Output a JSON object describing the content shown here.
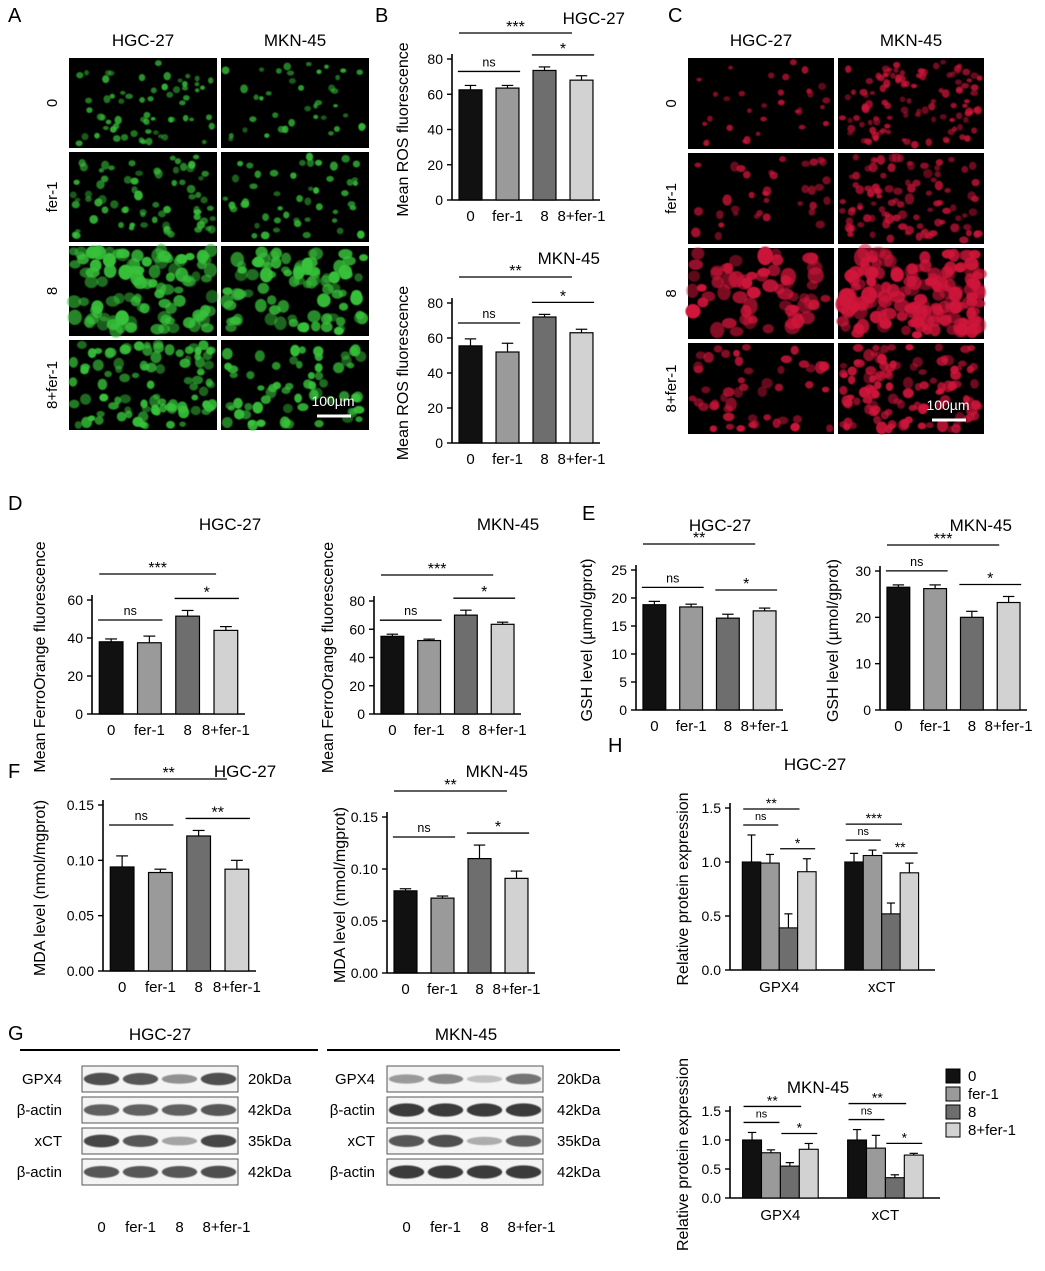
{
  "panel_letters": {
    "A": "A",
    "B": "B",
    "C": "C",
    "D": "D",
    "E": "E",
    "F": "F",
    "G": "G",
    "H": "H"
  },
  "cell_lines": [
    "HGC-27",
    "MKN-45"
  ],
  "conditions": [
    "0",
    "fer-1",
    "8",
    "8+fer-1"
  ],
  "scale_bar_label": "100µm",
  "colors": {
    "bar_fills": [
      "#111111",
      "#9a9a9a",
      "#6e6e6e",
      "#d2d2d2"
    ],
    "green_stain": "#39c23a",
    "red_stain": "#d0183a",
    "micro_background": "#000000"
  },
  "micrograph_A": {
    "stain": "green-fluorescence",
    "columns": [
      "HGC-27",
      "MKN-45"
    ],
    "rows": [
      "0",
      "fer-1",
      "8",
      "8+fer-1"
    ],
    "scale_bar": "100µm"
  },
  "micrograph_C": {
    "stain": "red-fluorescence",
    "columns": [
      "HGC-27",
      "MKN-45"
    ],
    "rows": [
      "0",
      "fer-1",
      "8",
      "8+fer-1"
    ],
    "scale_bar": "100µm"
  },
  "western_G": [
    {
      "title": "HGC-27",
      "rows": [
        {
          "label": "GPX4",
          "kda": "20kDa",
          "intensity": [
            0.8,
            0.75,
            0.45,
            0.8
          ]
        },
        {
          "label": "β-actin",
          "kda": "42kDa",
          "intensity": [
            0.7,
            0.7,
            0.7,
            0.75
          ]
        },
        {
          "label": "xCT",
          "kda": "35kDa",
          "intensity": [
            0.85,
            0.75,
            0.35,
            0.85
          ]
        },
        {
          "label": "β-actin",
          "kda": "42kDa",
          "intensity": [
            0.75,
            0.75,
            0.75,
            0.8
          ]
        }
      ],
      "lanes": [
        "0",
        "fer-1",
        "8",
        "8+fer-1"
      ]
    },
    {
      "title": "MKN-45",
      "rows": [
        {
          "label": "GPX4",
          "kda": "20kDa",
          "intensity": [
            0.4,
            0.5,
            0.2,
            0.6
          ]
        },
        {
          "label": "β-actin",
          "kda": "42kDa",
          "intensity": [
            0.9,
            0.9,
            0.9,
            0.9
          ]
        },
        {
          "label": "xCT",
          "kda": "35kDa",
          "intensity": [
            0.75,
            0.8,
            0.3,
            0.7
          ]
        },
        {
          "label": "β-actin",
          "kda": "42kDa",
          "intensity": [
            0.9,
            0.9,
            0.9,
            0.9
          ]
        }
      ],
      "lanes": [
        "0",
        "fer-1",
        "8",
        "8+fer-1"
      ]
    }
  ],
  "chart_data": [
    {
      "id": "B1",
      "type": "bar",
      "title": "HGC-27",
      "ylabel": "Mean ROS fluorescence",
      "categories": [
        "0",
        "fer-1",
        "8",
        "8+fer-1"
      ],
      "values": [
        62.5,
        63.5,
        73.5,
        68
      ],
      "errors": [
        2.5,
        1.5,
        2,
        2.5
      ],
      "ylim": [
        0,
        80
      ],
      "ticks": [
        0,
        20,
        40,
        60,
        80
      ],
      "sig": [
        {
          "from": 0,
          "to": 1,
          "label": "ns"
        },
        {
          "from": 2,
          "to": 3,
          "label": "*"
        },
        {
          "from": 0,
          "to": 2,
          "label": "***"
        }
      ]
    },
    {
      "id": "B2",
      "type": "bar",
      "title": "MKN-45",
      "ylabel": "Mean ROS fluorescence",
      "categories": [
        "0",
        "fer-1",
        "8",
        "8+fer-1"
      ],
      "values": [
        55.5,
        52,
        72,
        63
      ],
      "errors": [
        4,
        5,
        1.5,
        2
      ],
      "ylim": [
        0,
        80
      ],
      "ticks": [
        0,
        20,
        40,
        60,
        80
      ],
      "sig": [
        {
          "from": 0,
          "to": 1,
          "label": "ns"
        },
        {
          "from": 2,
          "to": 3,
          "label": "*"
        },
        {
          "from": 0,
          "to": 2,
          "label": "**"
        }
      ]
    },
    {
      "id": "D1",
      "type": "bar",
      "title": "HGC-27",
      "ylabel": "Mean FerroOrange fluorescence",
      "categories": [
        "0",
        "fer-1",
        "8",
        "8+fer-1"
      ],
      "values": [
        38,
        37.5,
        51.5,
        44
      ],
      "errors": [
        1.5,
        3.5,
        3,
        2
      ],
      "ylim": [
        0,
        60
      ],
      "ticks": [
        0,
        20,
        40,
        60
      ],
      "sig": [
        {
          "from": 0,
          "to": 1,
          "label": "ns"
        },
        {
          "from": 2,
          "to": 3,
          "label": "*"
        },
        {
          "from": 0,
          "to": 2,
          "label": "***"
        }
      ]
    },
    {
      "id": "D2",
      "type": "bar",
      "title": "MKN-45",
      "ylabel": "Mean FerroOrange fluorescence",
      "categories": [
        "0",
        "fer-1",
        "8",
        "8+fer-1"
      ],
      "values": [
        55,
        52,
        70,
        63.5
      ],
      "errors": [
        1.5,
        1,
        3.5,
        1.5
      ],
      "ylim": [
        0,
        80
      ],
      "ticks": [
        0,
        20,
        40,
        60,
        80
      ],
      "sig": [
        {
          "from": 0,
          "to": 1,
          "label": "ns"
        },
        {
          "from": 2,
          "to": 3,
          "label": "*"
        },
        {
          "from": 0,
          "to": 2,
          "label": "***"
        }
      ]
    },
    {
      "id": "E1",
      "type": "bar",
      "title": "HGC-27",
      "ylabel": "GSH level (µmol/gprot)",
      "categories": [
        "0",
        "fer-1",
        "8",
        "8+fer-1"
      ],
      "values": [
        18.8,
        18.4,
        16.4,
        17.7
      ],
      "errors": [
        0.6,
        0.5,
        0.7,
        0.5
      ],
      "ylim": [
        0,
        25
      ],
      "ticks": [
        0,
        5,
        10,
        15,
        20,
        25
      ],
      "sig": [
        {
          "from": 0,
          "to": 1,
          "label": "ns"
        },
        {
          "from": 2,
          "to": 3,
          "label": "*"
        },
        {
          "from": 0,
          "to": 2,
          "label": "**"
        }
      ]
    },
    {
      "id": "E2",
      "type": "bar",
      "title": "MKN-45",
      "ylabel": "GSH level (µmol/gprot)",
      "categories": [
        "0",
        "fer-1",
        "8",
        "8+fer-1"
      ],
      "values": [
        26.5,
        26.2,
        20,
        23.2
      ],
      "errors": [
        0.5,
        0.8,
        1.3,
        1.3
      ],
      "ylim": [
        0,
        30
      ],
      "ticks": [
        0,
        10,
        20,
        30
      ],
      "sig": [
        {
          "from": 0,
          "to": 1,
          "label": "ns"
        },
        {
          "from": 2,
          "to": 3,
          "label": "*"
        },
        {
          "from": 0,
          "to": 2,
          "label": "***"
        }
      ]
    },
    {
      "id": "F1",
      "type": "bar",
      "title": "HGC-27",
      "ylabel": "MDA level (nmol/mgprot)",
      "categories": [
        "0",
        "fer-1",
        "8",
        "8+fer-1"
      ],
      "values": [
        0.094,
        0.089,
        0.122,
        0.092
      ],
      "errors": [
        0.01,
        0.003,
        0.005,
        0.008
      ],
      "ylim": [
        0,
        0.15
      ],
      "ticks": [
        0,
        0.05,
        0.1,
        0.15
      ],
      "tick_labels": [
        "0.00",
        "0.05",
        "0.10",
        "0.15"
      ],
      "sig": [
        {
          "from": 0,
          "to": 1,
          "label": "ns"
        },
        {
          "from": 2,
          "to": 3,
          "label": "**"
        },
        {
          "from": 0,
          "to": 2,
          "label": "**"
        }
      ]
    },
    {
      "id": "F2",
      "type": "bar",
      "title": "MKN-45",
      "ylabel": "MDA level (nmol/mgprot)",
      "categories": [
        "0",
        "fer-1",
        "8",
        "8+fer-1"
      ],
      "values": [
        0.079,
        0.072,
        0.11,
        0.091
      ],
      "errors": [
        0.002,
        0.002,
        0.013,
        0.007
      ],
      "ylim": [
        0,
        0.15
      ],
      "ticks": [
        0,
        0.05,
        0.1,
        0.15
      ],
      "tick_labels": [
        "0.00",
        "0.05",
        "0.10",
        "0.15"
      ],
      "sig": [
        {
          "from": 0,
          "to": 1,
          "label": "ns"
        },
        {
          "from": 2,
          "to": 3,
          "label": "*"
        },
        {
          "from": 0,
          "to": 2,
          "label": "**"
        }
      ]
    },
    {
      "id": "H1",
      "type": "grouped-bar",
      "title": "HGC-27",
      "ylabel": "Relative protein expression",
      "groups": [
        "GPX4",
        "xCT"
      ],
      "series": [
        {
          "name": "0",
          "values": [
            1.0,
            1.0
          ],
          "errors": [
            0.25,
            0.08
          ]
        },
        {
          "name": "fer-1",
          "values": [
            0.99,
            1.06
          ],
          "errors": [
            0.08,
            0.05
          ]
        },
        {
          "name": "8",
          "values": [
            0.39,
            0.52
          ],
          "errors": [
            0.13,
            0.1
          ]
        },
        {
          "name": "8+fer-1",
          "values": [
            0.91,
            0.9
          ],
          "errors": [
            0.12,
            0.09
          ]
        }
      ],
      "ylim": [
        0,
        1.5
      ],
      "ticks": [
        0,
        0.5,
        1,
        1.5
      ],
      "tick_labels": [
        "0.0",
        "0.5",
        "1.0",
        "1.5"
      ],
      "sig": [
        {
          "group": 0,
          "from": 0,
          "to": 1,
          "label": "ns"
        },
        {
          "group": 0,
          "from": 2,
          "to": 3,
          "label": "*"
        },
        {
          "group": 0,
          "from": 0,
          "to": 2,
          "label": "**"
        },
        {
          "group": 1,
          "from": 0,
          "to": 1,
          "label": "ns"
        },
        {
          "group": 1,
          "from": 2,
          "to": 3,
          "label": "**"
        },
        {
          "group": 1,
          "from": 0,
          "to": 2,
          "label": "***"
        }
      ]
    },
    {
      "id": "H2",
      "type": "grouped-bar",
      "title": "MKN-45",
      "ylabel": "Relative protein expression",
      "groups": [
        "GPX4",
        "xCT"
      ],
      "series": [
        {
          "name": "0",
          "values": [
            1.0,
            1.0
          ],
          "errors": [
            0.13,
            0.18
          ]
        },
        {
          "name": "fer-1",
          "values": [
            0.78,
            0.86
          ],
          "errors": [
            0.05,
            0.22
          ]
        },
        {
          "name": "8",
          "values": [
            0.55,
            0.35
          ],
          "errors": [
            0.06,
            0.05
          ]
        },
        {
          "name": "8+fer-1",
          "values": [
            0.84,
            0.74
          ],
          "errors": [
            0.1,
            0.03
          ]
        }
      ],
      "ylim": [
        0,
        1.5
      ],
      "ticks": [
        0,
        0.5,
        1,
        1.5
      ],
      "tick_labels": [
        "0.0",
        "0.5",
        "1.0",
        "1.5"
      ],
      "legend": [
        "0",
        "fer-1",
        "8",
        "8+fer-1"
      ],
      "sig": [
        {
          "group": 0,
          "from": 0,
          "to": 1,
          "label": "ns"
        },
        {
          "group": 0,
          "from": 2,
          "to": 3,
          "label": "*"
        },
        {
          "group": 0,
          "from": 0,
          "to": 2,
          "label": "**"
        },
        {
          "group": 1,
          "from": 0,
          "to": 1,
          "label": "ns"
        },
        {
          "group": 1,
          "from": 2,
          "to": 3,
          "label": "*"
        },
        {
          "group": 1,
          "from": 0,
          "to": 2,
          "label": "**"
        }
      ]
    }
  ]
}
